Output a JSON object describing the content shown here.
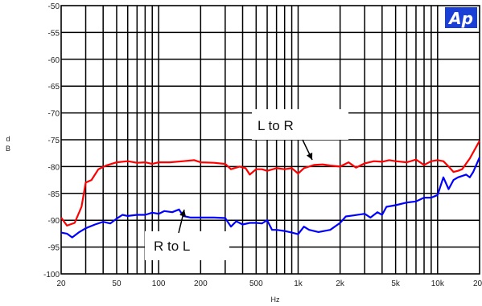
{
  "chart_data": {
    "type": "line",
    "xscale": "log",
    "xlim": [
      20,
      20000
    ],
    "ylim": [
      -100,
      -50
    ],
    "grid": true,
    "xlabel": "Hz",
    "ylabel": "d\nB",
    "xticks": [
      {
        "value": 20,
        "label": "20"
      },
      {
        "value": 50,
        "label": "50"
      },
      {
        "value": 100,
        "label": "100"
      },
      {
        "value": 200,
        "label": "200"
      },
      {
        "value": 500,
        "label": "500"
      },
      {
        "value": 1000,
        "label": "1k"
      },
      {
        "value": 2000,
        "label": "2k"
      },
      {
        "value": 5000,
        "label": "5k"
      },
      {
        "value": 10000,
        "label": "10k"
      },
      {
        "value": 20000,
        "label": "20k"
      }
    ],
    "yticks": [
      {
        "value": -50,
        "label": "-50"
      },
      {
        "value": -55,
        "label": "-55"
      },
      {
        "value": -60,
        "label": "-60"
      },
      {
        "value": -65,
        "label": "-65"
      },
      {
        "value": -70,
        "label": "-70"
      },
      {
        "value": -75,
        "label": "-75"
      },
      {
        "value": -80,
        "label": "-80"
      },
      {
        "value": -85,
        "label": "-85"
      },
      {
        "value": -90,
        "label": "-90"
      },
      {
        "value": -95,
        "label": "-95"
      },
      {
        "value": -100,
        "label": "-100"
      }
    ],
    "series": [
      {
        "name": "L to R",
        "color": "#ff0000",
        "points": [
          [
            20,
            -89.5
          ],
          [
            22,
            -91
          ],
          [
            25,
            -90.5
          ],
          [
            28,
            -87.5
          ],
          [
            30,
            -83
          ],
          [
            33,
            -82.5
          ],
          [
            37,
            -80.5
          ],
          [
            42,
            -79.8
          ],
          [
            50,
            -79.2
          ],
          [
            60,
            -79
          ],
          [
            70,
            -79.3
          ],
          [
            80,
            -79.2
          ],
          [
            90,
            -79.5
          ],
          [
            100,
            -79.2
          ],
          [
            120,
            -79.2
          ],
          [
            150,
            -79
          ],
          [
            180,
            -78.8
          ],
          [
            200,
            -79.2
          ],
          [
            250,
            -79.3
          ],
          [
            300,
            -79.5
          ],
          [
            330,
            -80.5
          ],
          [
            380,
            -80
          ],
          [
            420,
            -80.3
          ],
          [
            450,
            -81.5
          ],
          [
            500,
            -80.5
          ],
          [
            550,
            -80.5
          ],
          [
            600,
            -80.8
          ],
          [
            700,
            -80.3
          ],
          [
            800,
            -80.5
          ],
          [
            900,
            -80.3
          ],
          [
            1000,
            -81.3
          ],
          [
            1100,
            -80.3
          ],
          [
            1300,
            -79.7
          ],
          [
            1500,
            -79.6
          ],
          [
            1700,
            -79.8
          ],
          [
            2000,
            -80
          ],
          [
            2300,
            -79.2
          ],
          [
            2600,
            -80.2
          ],
          [
            3000,
            -79.4
          ],
          [
            3500,
            -79
          ],
          [
            4000,
            -79.1
          ],
          [
            4500,
            -78.8
          ],
          [
            5000,
            -79
          ],
          [
            6000,
            -79.2
          ],
          [
            7000,
            -78.7
          ],
          [
            8000,
            -79.7
          ],
          [
            9000,
            -79
          ],
          [
            10000,
            -78.8
          ],
          [
            11000,
            -79
          ],
          [
            12000,
            -80
          ],
          [
            13000,
            -81
          ],
          [
            14000,
            -80.8
          ],
          [
            15000,
            -80.5
          ],
          [
            17000,
            -78.5
          ],
          [
            20000,
            -75.2
          ]
        ]
      },
      {
        "name": "R to L",
        "color": "#0000ff",
        "points": [
          [
            20,
            -92.3
          ],
          [
            22,
            -92.5
          ],
          [
            24,
            -93.2
          ],
          [
            27,
            -92.2
          ],
          [
            30,
            -91.5
          ],
          [
            35,
            -90.8
          ],
          [
            40,
            -90.3
          ],
          [
            45,
            -90.6
          ],
          [
            50,
            -89.7
          ],
          [
            55,
            -89
          ],
          [
            60,
            -89.2
          ],
          [
            70,
            -89
          ],
          [
            80,
            -89
          ],
          [
            90,
            -88.6
          ],
          [
            100,
            -88.8
          ],
          [
            110,
            -88.3
          ],
          [
            125,
            -88.5
          ],
          [
            140,
            -88
          ],
          [
            150,
            -89.2
          ],
          [
            170,
            -89.5
          ],
          [
            200,
            -89.5
          ],
          [
            250,
            -89.5
          ],
          [
            300,
            -89.6
          ],
          [
            330,
            -91.2
          ],
          [
            360,
            -90.2
          ],
          [
            400,
            -90.8
          ],
          [
            450,
            -90.5
          ],
          [
            500,
            -90.5
          ],
          [
            550,
            -90.6
          ],
          [
            600,
            -90
          ],
          [
            650,
            -91.8
          ],
          [
            700,
            -91.8
          ],
          [
            800,
            -92
          ],
          [
            900,
            -92.3
          ],
          [
            1000,
            -92.6
          ],
          [
            1100,
            -91.2
          ],
          [
            1200,
            -91.8
          ],
          [
            1400,
            -92.2
          ],
          [
            1700,
            -91.8
          ],
          [
            2000,
            -90.5
          ],
          [
            2200,
            -89.3
          ],
          [
            2500,
            -89.1
          ],
          [
            3000,
            -88.8
          ],
          [
            3300,
            -89.5
          ],
          [
            3700,
            -88.5
          ],
          [
            4000,
            -89
          ],
          [
            4300,
            -87.5
          ],
          [
            5000,
            -87.2
          ],
          [
            6000,
            -86.7
          ],
          [
            7000,
            -86.5
          ],
          [
            8000,
            -85.8
          ],
          [
            9000,
            -85.8
          ],
          [
            10000,
            -85.3
          ],
          [
            11000,
            -82
          ],
          [
            12000,
            -84.2
          ],
          [
            13000,
            -82.5
          ],
          [
            14000,
            -82
          ],
          [
            16000,
            -81.5
          ],
          [
            17000,
            -82
          ],
          [
            18000,
            -81
          ],
          [
            20000,
            -78.3
          ]
        ]
      }
    ],
    "annotations": [
      {
        "text": "L to R",
        "x": 1350,
        "y": -80
      },
      {
        "text": "R to L",
        "x": 145,
        "y": -88.5
      }
    ],
    "logo_text": "Ap",
    "logo_color": "#1a3fd6"
  }
}
